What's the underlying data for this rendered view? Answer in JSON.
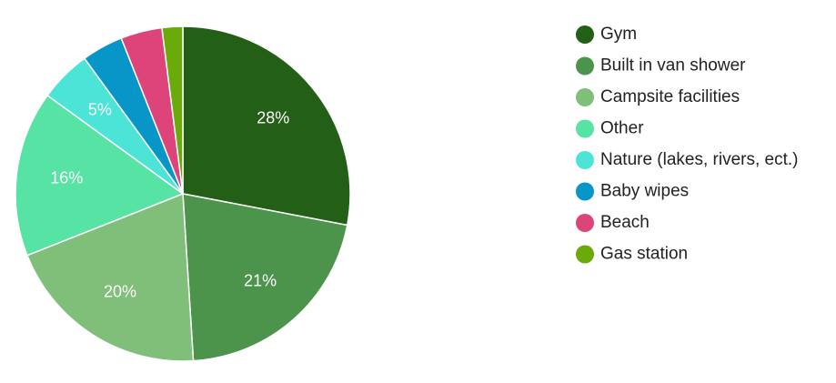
{
  "chart_data": {
    "type": "pie",
    "categories": [
      "Gym",
      "Built in van shower",
      "Campsite facilities",
      "Other",
      "Nature (lakes, rivers, ect.)",
      "Baby wipes",
      "Beach",
      "Gas station"
    ],
    "values": [
      28,
      21,
      20,
      16,
      5,
      4,
      4,
      2
    ],
    "value_labels": [
      "28%",
      "21%",
      "20%",
      "16%",
      "5%",
      null,
      null,
      null
    ],
    "colors": [
      "#245f17",
      "#4c944b",
      "#7fbf7a",
      "#57e3a3",
      "#4de4d8",
      "#0896c8",
      "#dc447a",
      "#6aaa0b"
    ],
    "legend": "right"
  }
}
